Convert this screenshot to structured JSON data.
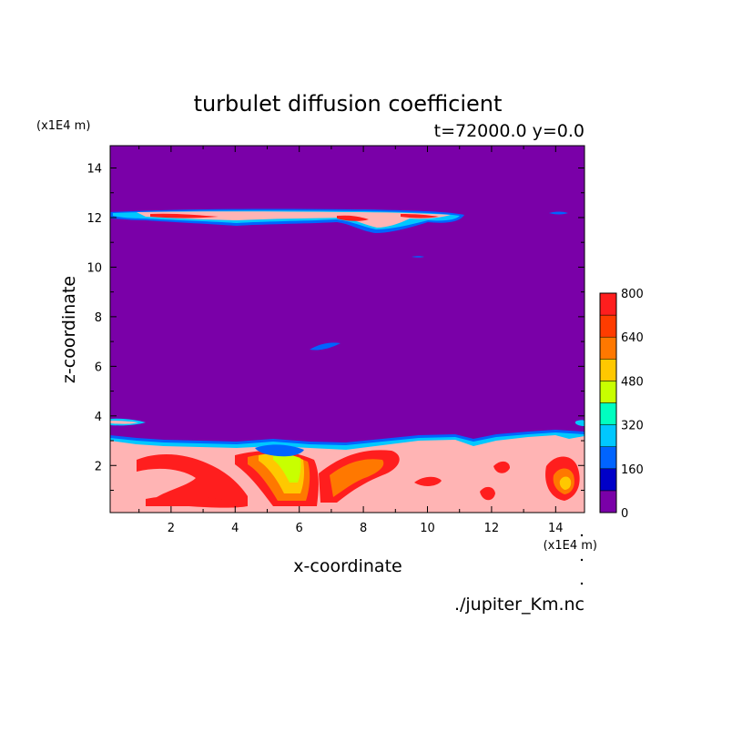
{
  "chart_data": {
    "type": "heatmap",
    "title": "turbulet diffusion coefficient",
    "subtitle": "t=72000.0 y=0.0",
    "xlabel": "x-coordinate",
    "ylabel": "z-coordinate",
    "x_unit": "(x1E4 m)",
    "y_unit": "(x1E4 m)",
    "xlim": [
      0.1,
      14.9
    ],
    "ylim": [
      0.1,
      14.9
    ],
    "x_ticks": [
      2,
      4,
      6,
      8,
      10,
      12,
      14
    ],
    "y_ticks": [
      2,
      4,
      6,
      8,
      10,
      12,
      14
    ],
    "colorbar": {
      "levels": [
        0,
        80,
        160,
        240,
        320,
        400,
        480,
        560,
        640,
        720,
        800
      ],
      "tick_labels": [
        "0",
        "160",
        "320",
        "480",
        "640",
        "800"
      ],
      "tick_values": [
        0,
        160,
        320,
        480,
        640,
        800
      ],
      "colors": [
        "#7a00a8",
        "#0000c8",
        "#0064ff",
        "#00c8ff",
        "#00ffc0",
        "#c8ff00",
        "#ffc800",
        "#ff7800",
        "#ff3c00",
        "#ff1e1e",
        "#ffb4b4"
      ]
    },
    "regions": {
      "upper_layer": {
        "x_range": [
          0.1,
          11.2
        ],
        "z_center": 12.1,
        "value": 800
      },
      "boundary_layer": {
        "z_top": 3.0,
        "value": 800
      },
      "background_value": 0
    },
    "footer": "./jupiter_Km.nc"
  }
}
